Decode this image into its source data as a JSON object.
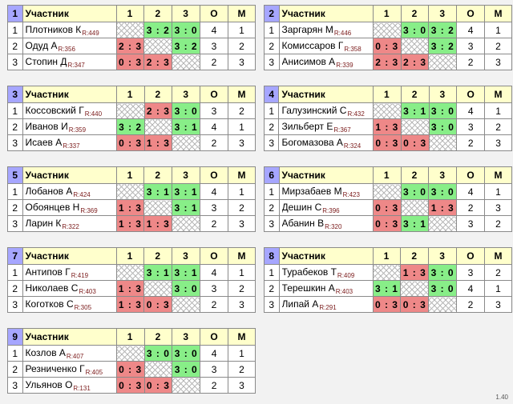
{
  "header": {
    "participant": "Участник",
    "c1": "1",
    "c2": "2",
    "c3": "3",
    "o": "O",
    "m": "M"
  },
  "version": "1.40",
  "groups": [
    {
      "num": "1",
      "rows": [
        {
          "n": "1",
          "name": "Плотников К",
          "rating": "R:449",
          "r1": "",
          "r2": "3 : 2",
          "r3": "3 : 0",
          "o": "4",
          "m": "1"
        },
        {
          "n": "2",
          "name": "Одуд А",
          "rating": "R:356",
          "r1": "2 : 3",
          "r2": "",
          "r3": "3 : 2",
          "o": "3",
          "m": "2"
        },
        {
          "n": "3",
          "name": "Стопин Д",
          "rating": "R:347",
          "r1": "0 : 3",
          "r2": "2 : 3",
          "r3": "",
          "o": "2",
          "m": "3"
        }
      ]
    },
    {
      "num": "2",
      "rows": [
        {
          "n": "1",
          "name": "Заргарян М",
          "rating": "R:446",
          "r1": "",
          "r2": "3 : 0",
          "r3": "3 : 2",
          "o": "4",
          "m": "1"
        },
        {
          "n": "2",
          "name": "Комиссаров Г",
          "rating": "R:358",
          "r1": "0 : 3",
          "r2": "",
          "r3": "3 : 2",
          "o": "3",
          "m": "2"
        },
        {
          "n": "3",
          "name": "Анисимов А",
          "rating": "R:339",
          "r1": "2 : 3",
          "r2": "2 : 3",
          "r3": "",
          "o": "2",
          "m": "3"
        }
      ]
    },
    {
      "num": "3",
      "rows": [
        {
          "n": "1",
          "name": "Коссовский Г",
          "rating": "R:440",
          "r1": "",
          "r2": "2 : 3",
          "r3": "3 : 0",
          "o": "3",
          "m": "2"
        },
        {
          "n": "2",
          "name": "Иванов И",
          "rating": "R:359",
          "r1": "3 : 2",
          "r2": "",
          "r3": "3 : 1",
          "o": "4",
          "m": "1"
        },
        {
          "n": "3",
          "name": "Исаев А",
          "rating": "R:337",
          "r1": "0 : 3",
          "r2": "1 : 3",
          "r3": "",
          "o": "2",
          "m": "3"
        }
      ]
    },
    {
      "num": "4",
      "rows": [
        {
          "n": "1",
          "name": "Галузинский С",
          "rating": "R:432",
          "r1": "",
          "r2": "3 : 1",
          "r3": "3 : 0",
          "o": "4",
          "m": "1"
        },
        {
          "n": "2",
          "name": "Зильберт Е",
          "rating": "R:367",
          "r1": "1 : 3",
          "r2": "",
          "r3": "3 : 0",
          "o": "3",
          "m": "2"
        },
        {
          "n": "3",
          "name": "Богомазова А",
          "rating": "R:324",
          "r1": "0 : 3",
          "r2": "0 : 3",
          "r3": "",
          "o": "2",
          "m": "3"
        }
      ]
    },
    {
      "num": "5",
      "rows": [
        {
          "n": "1",
          "name": "Лобанов А",
          "rating": "R:424",
          "r1": "",
          "r2": "3 : 1",
          "r3": "3 : 1",
          "o": "4",
          "m": "1"
        },
        {
          "n": "2",
          "name": "Обоянцев Н",
          "rating": "R:369",
          "r1": "1 : 3",
          "r2": "",
          "r3": "3 : 1",
          "o": "3",
          "m": "2"
        },
        {
          "n": "3",
          "name": "Ларин К",
          "rating": "R:322",
          "r1": "1 : 3",
          "r2": "1 : 3",
          "r3": "",
          "o": "2",
          "m": "3"
        }
      ]
    },
    {
      "num": "6",
      "rows": [
        {
          "n": "1",
          "name": "Мирзабаев М",
          "rating": "R:423",
          "r1": "",
          "r2": "3 : 0",
          "r3": "3 : 0",
          "o": "4",
          "m": "1"
        },
        {
          "n": "2",
          "name": "Дешин С",
          "rating": "R:396",
          "r1": "0 : 3",
          "r2": "",
          "r3": "1 : 3",
          "o": "2",
          "m": "3"
        },
        {
          "n": "3",
          "name": "Абанин В",
          "rating": "R:320",
          "r1": "0 : 3",
          "r2": "3 : 1",
          "r3": "",
          "o": "3",
          "m": "2"
        }
      ]
    },
    {
      "num": "7",
      "rows": [
        {
          "n": "1",
          "name": "Антипов Г",
          "rating": "R:419",
          "r1": "",
          "r2": "3 : 1",
          "r3": "3 : 1",
          "o": "4",
          "m": "1"
        },
        {
          "n": "2",
          "name": "Николаев С",
          "rating": "R:403",
          "r1": "1 : 3",
          "r2": "",
          "r3": "3 : 0",
          "o": "3",
          "m": "2"
        },
        {
          "n": "3",
          "name": "Коготков С",
          "rating": "R:305",
          "r1": "1 : 3",
          "r2": "0 : 3",
          "r3": "",
          "o": "2",
          "m": "3"
        }
      ]
    },
    {
      "num": "8",
      "rows": [
        {
          "n": "1",
          "name": "Турабеков Т",
          "rating": "R:409",
          "r1": "",
          "r2": "1 : 3",
          "r3": "3 : 0",
          "o": "3",
          "m": "2"
        },
        {
          "n": "2",
          "name": "Терешкин А",
          "rating": "R:403",
          "r1": "3 : 1",
          "r2": "",
          "r3": "3 : 0",
          "o": "4",
          "m": "1"
        },
        {
          "n": "3",
          "name": "Липай А",
          "rating": "R:291",
          "r1": "0 : 3",
          "r2": "0 : 3",
          "r3": "",
          "o": "2",
          "m": "3"
        }
      ]
    },
    {
      "num": "9",
      "rows": [
        {
          "n": "1",
          "name": "Козлов А",
          "rating": "R:407",
          "r1": "",
          "r2": "3 : 0",
          "r3": "3 : 0",
          "o": "4",
          "m": "1"
        },
        {
          "n": "2",
          "name": "Резниченко Г",
          "rating": "R:405",
          "r1": "0 : 3",
          "r2": "",
          "r3": "3 : 0",
          "o": "3",
          "m": "2"
        },
        {
          "n": "3",
          "name": "Ульянов О",
          "rating": "R:131",
          "r1": "0 : 3",
          "r2": "0 : 3",
          "r3": "",
          "o": "2",
          "m": "3"
        }
      ]
    }
  ]
}
